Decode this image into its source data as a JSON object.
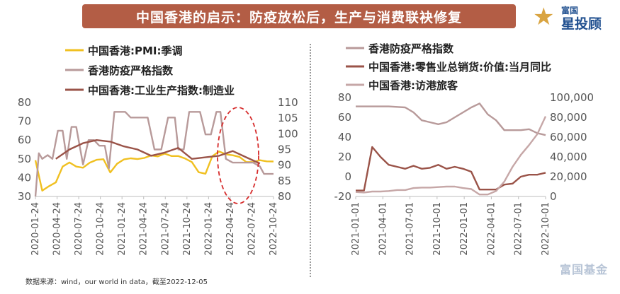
{
  "header": {
    "title": "中国香港的启示：防疫放松后，生产与消费联袂修复",
    "logo_top": "富国",
    "logo_main": "星投顾",
    "logo_star": "★"
  },
  "footer": {
    "source": "数据来源：wind，our world in data，截至2022-12-05",
    "watermark": "富国基金"
  },
  "colors": {
    "title_bg": "#b35d45",
    "pmi": "#f0c021",
    "stringency": "#b89a9a",
    "industrial": "#9a5348",
    "retail": "#9a5348",
    "visitors": "#c6a7a7",
    "annotation": "#d62b2b"
  },
  "chart_data": [
    {
      "type": "line",
      "legend": [
        {
          "key": "pmi",
          "label": "中国香港:PMI:季调"
        },
        {
          "key": "stringency",
          "label": "香港防疫严格指数"
        },
        {
          "key": "industrial",
          "label": "中国香港:工业生产指数:制造业"
        }
      ],
      "left_axis": {
        "ticks": [
          30,
          40,
          50,
          60,
          70,
          80
        ],
        "range": [
          30,
          80
        ]
      },
      "right_axis": {
        "ticks": [
          80,
          85,
          90,
          95,
          100,
          105,
          110
        ],
        "range": [
          80,
          110
        ]
      },
      "x_labels": [
        "2020-01-24",
        "2020-04-24",
        "2020-07-24",
        "2020-10-24",
        "2021-01-24",
        "2021-04-24",
        "2021-07-24",
        "2021-10-24",
        "2022-01-24",
        "2022-04-24",
        "2022-07-24",
        "2022-10-24"
      ],
      "x_range": [
        0,
        35
      ],
      "annotation": "dashed ellipse highlighting mid-2022 rebound",
      "series": [
        {
          "key": "pmi",
          "axis": "left",
          "x": [
            0,
            1,
            2,
            3,
            4,
            5,
            6,
            7,
            8,
            9,
            10,
            11,
            12,
            13,
            14,
            15,
            16,
            17,
            18,
            19,
            20,
            21,
            22,
            23,
            24,
            25,
            26,
            27,
            28,
            29,
            30,
            31,
            32,
            33,
            34,
            35
          ],
          "values": [
            49.3,
            33.1,
            35.5,
            37.5,
            45.9,
            48.1,
            45.9,
            45.3,
            48.0,
            49.5,
            49.8,
            42.8,
            47.4,
            49.7,
            50.3,
            49.9,
            50.5,
            51.8,
            51.3,
            52.8,
            51.5,
            51.5,
            50.2,
            48.3,
            42.9,
            42.1,
            51.4,
            54.0,
            52.4,
            51.9,
            51.0,
            48.3,
            48.3,
            49.3,
            48.7,
            48.6
          ]
        },
        {
          "key": "stringency",
          "axis": "left",
          "x": [
            0,
            0.5,
            1,
            1.8,
            2.5,
            3.3,
            4,
            4.6,
            5.3,
            6,
            7,
            7.8,
            8.6,
            9.4,
            10.2,
            10.8,
            11.6,
            12.4,
            13.2,
            14,
            15,
            15.8,
            16.5,
            17.5,
            18.5,
            19.5,
            20.5,
            21,
            21.8,
            22.6,
            23.4,
            24.2,
            25,
            25.8,
            26.6,
            27.2,
            28,
            29,
            30,
            31,
            32,
            33,
            33.6,
            34.3,
            35
          ],
          "values": [
            30,
            53,
            50,
            52,
            50,
            65,
            65,
            50,
            67,
            67,
            47,
            60,
            60,
            57,
            57,
            45,
            75,
            75,
            75,
            72,
            72,
            72,
            72,
            55,
            55,
            72,
            72,
            55,
            55,
            75,
            75,
            75,
            63,
            63,
            75,
            75,
            50,
            48,
            48,
            48,
            48,
            46,
            42,
            42,
            42
          ]
        },
        {
          "key": "industrial",
          "axis": "right",
          "x": [
            3,
            5,
            7,
            9,
            11,
            13,
            15,
            17,
            19,
            21,
            23,
            25,
            27,
            29,
            31,
            33
          ],
          "values": [
            92,
            95,
            97,
            98,
            97.5,
            96,
            95,
            93,
            94,
            95.5,
            92,
            92.5,
            93,
            94.5,
            92.5,
            90.5
          ]
        }
      ]
    },
    {
      "type": "line",
      "legend": [
        {
          "key": "stringency",
          "label": "香港防疫严格指数"
        },
        {
          "key": "retail",
          "label": "中国香港:零售业总销货:价值:当月同比"
        },
        {
          "key": "visitors",
          "label": "中国香港:访港旅客"
        }
      ],
      "left_axis": {
        "ticks": [
          -20,
          0,
          20,
          40,
          60,
          80
        ],
        "range": [
          -20,
          80
        ]
      },
      "right_axis": {
        "ticks": [
          "0",
          "20,000",
          "40,000",
          "60,000",
          "80,000",
          "100,000"
        ],
        "range": [
          0,
          100000
        ]
      },
      "x_labels": [
        "2021-01-01",
        "2021-04-01",
        "2021-07-01",
        "2021-10-01",
        "2022-01-01",
        "2022-04-01",
        "2022-07-01",
        "2022-10-01"
      ],
      "x_range": [
        0,
        23
      ],
      "series": [
        {
          "key": "stringency",
          "axis": "left",
          "x": [
            0,
            1,
            2,
            3,
            4,
            5,
            6,
            7,
            8,
            9,
            10,
            11,
            12,
            13,
            14,
            15,
            16,
            17,
            18,
            19,
            20,
            21,
            22,
            23
          ],
          "values": [
            71,
            71,
            71,
            71,
            71,
            70.5,
            70,
            65,
            57,
            55,
            53,
            55,
            60,
            65,
            70,
            74,
            63,
            57,
            47,
            47,
            47,
            48,
            44,
            42
          ]
        },
        {
          "key": "retail",
          "axis": "left",
          "x": [
            0,
            1,
            2,
            3,
            4,
            5,
            6,
            7,
            8,
            9,
            10,
            11,
            12,
            13,
            14,
            15,
            16,
            17,
            18,
            19,
            20,
            21,
            22,
            23
          ],
          "values": [
            -14,
            -14,
            30,
            20,
            12,
            10,
            8,
            11,
            8,
            9,
            12,
            8,
            10,
            8,
            5,
            -13,
            -13,
            -13,
            -8,
            -7,
            0,
            2,
            2,
            4
          ]
        },
        {
          "key": "visitors",
          "axis": "right",
          "x": [
            0,
            1,
            2,
            3,
            4,
            5,
            6,
            7,
            8,
            9,
            10,
            11,
            12,
            13,
            14,
            15,
            16,
            17,
            18,
            19,
            20,
            21,
            22,
            23
          ],
          "values": [
            4500,
            4000,
            5000,
            5000,
            5500,
            6500,
            6500,
            8500,
            9000,
            9000,
            9500,
            10000,
            10000,
            8500,
            7500,
            2000,
            2000,
            5500,
            15000,
            30000,
            42000,
            52000,
            63000,
            81000
          ]
        }
      ]
    }
  ]
}
